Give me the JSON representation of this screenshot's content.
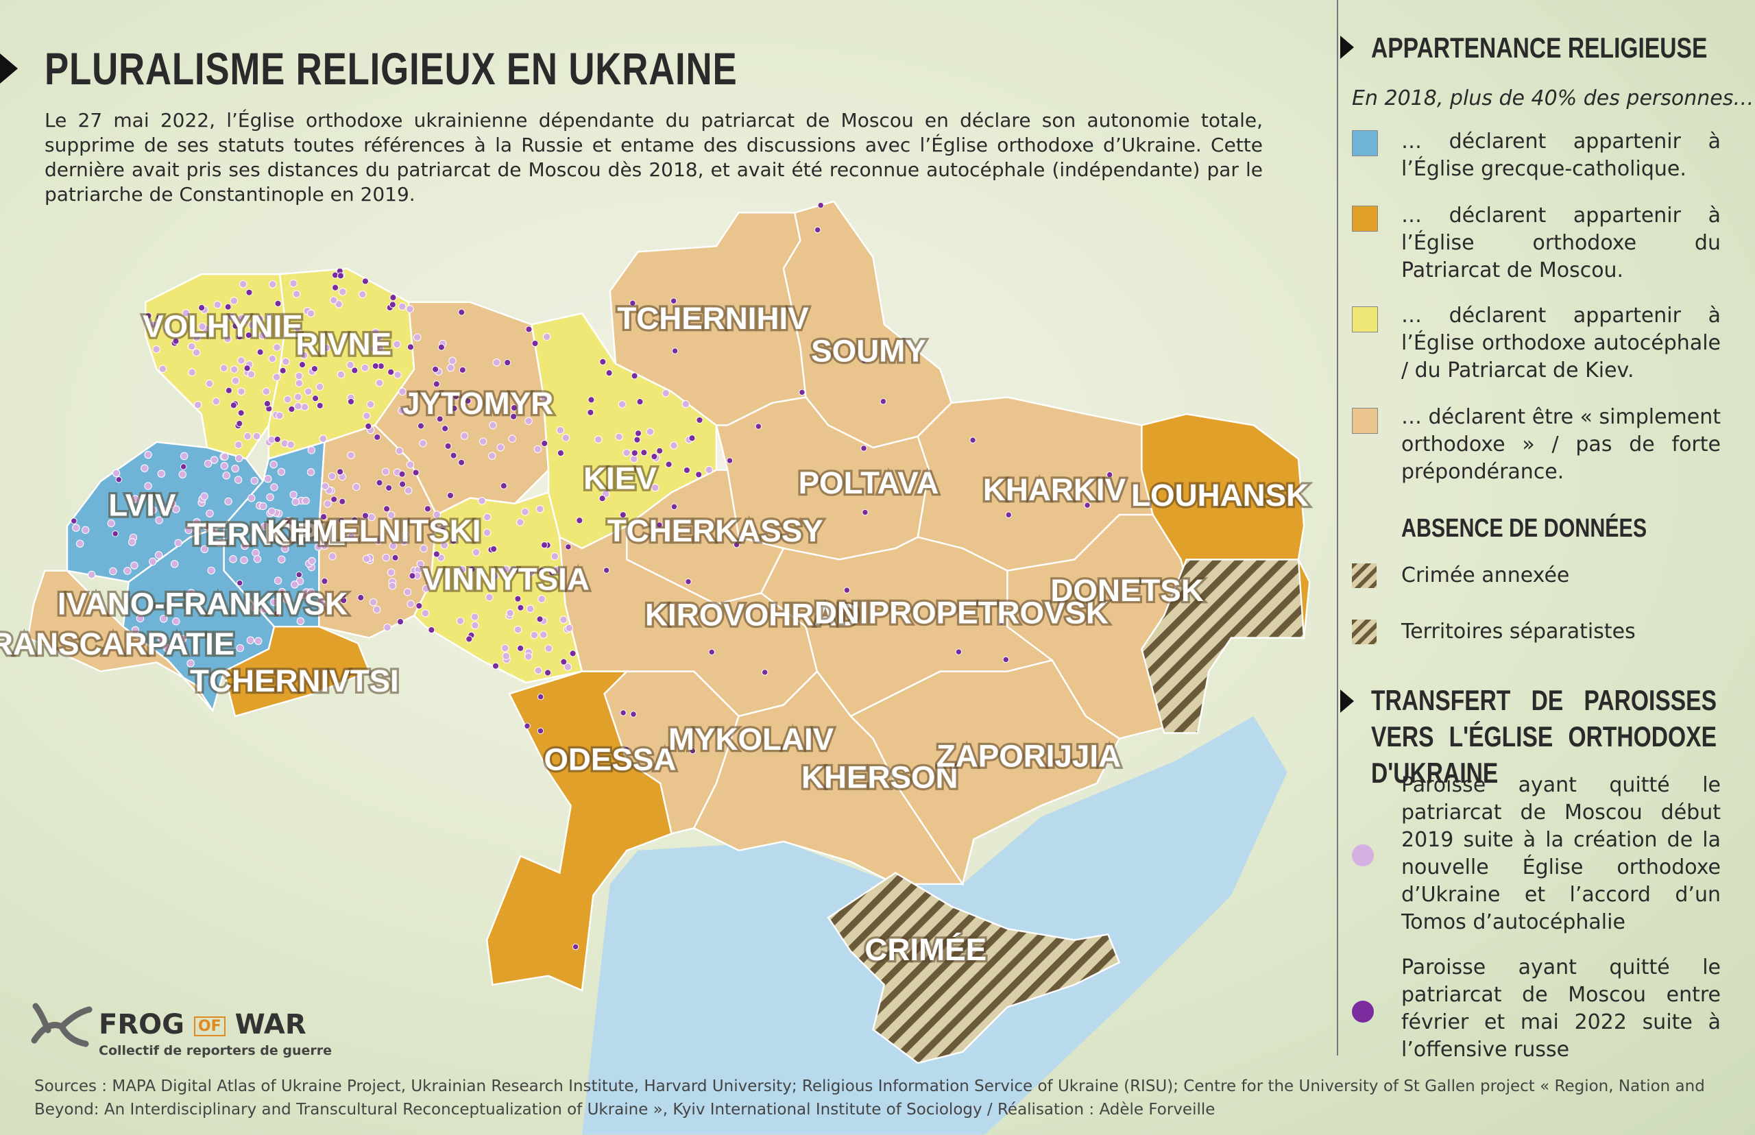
{
  "header": {
    "title": "PLURALISME RELIGIEUX EN UKRAINE",
    "intro": "Le 27 mai 2022, l’Église orthodoxe ukrainienne dépendante du patriarcat de Moscou en déclare son autonomie totale, supprime de ses statuts toutes références à la Russie et entame des discussions avec l’Église orthodoxe d’Ukraine. Cette dernière avait pris ses distances du patriarcat de Moscou dès 2018, et avait été reconnue autocéphale (indépendante) par le patriarche de Constantinople en 2019."
  },
  "map": {
    "regions": [
      "VOLHYNIE",
      "RIVNE",
      "JYTOMYR",
      "KIEV",
      "TCHERNIHIV",
      "SOUMY",
      "POLTAVA",
      "KHARKIV",
      "LOUHANSK",
      "LVIV",
      "TERNOPIL",
      "KHMELNITSKI",
      "VINNYTSIA",
      "TCHERKASSY",
      "IVANO-FRANKIVSK",
      "TRANSCARPATIE",
      "TCHERNIVTSI",
      "KIROVOHRAD",
      "DNIPROPETROVSK",
      "DONETSK",
      "ODESSA",
      "MYKOLAIV",
      "KHERSON",
      "ZAPORIJJIA",
      "CRIMÉE"
    ]
  },
  "legend": {
    "title": "APPARTENANCE RELIGIEUSE",
    "subtitle": "En 2018, plus de 40% des personnes…",
    "items": [
      "… déclarent appartenir à l’Église grecque-catholique.",
      "… déclarent appartenir à l’Église orthodoxe du Patriarcat de Moscou.",
      "… déclarent appartenir à l’Église orthodoxe autocéphale / du Patriarcat de Kiev.",
      "… déclarent être « simplement orthodoxe » / pas de forte prépondérance."
    ],
    "no_data_title": "ABSENCE DE DONNÉES",
    "no_data_items": [
      "Crimée annexée",
      "Territoires séparatistes"
    ],
    "transfer_title": "TRANSFERT DE PAROISSES VERS L'ÉGLISE ORTHODOXE D'UKRAINE",
    "transfer_items": [
      "Paroisse ayant quitté le patriarcat de Moscou début 2019 suite à la création de la nouvelle Église orthodoxe d’Ukraine et l’accord d’un Tomos d’autocéphalie",
      "Paroisse ayant quitté le patriarcat de Moscou entre février et mai 2022 suite à l’offensive russe"
    ]
  },
  "logo": {
    "part1": "FROG",
    "part2": "OF",
    "part3": "WAR",
    "tagline": "Collectif de reporters de guerre"
  },
  "sources": "Sources : MAPA Digital Atlas of Ukraine Project, Ukrainian Research Institute, Harvard University; Religious Information Service of Ukraine (RISU); Centre for the University of St Gallen project « Region, Nation and Beyond: An Interdisciplinary and Transcultural Reconceptualization of Ukraine », Kyiv International Institute of Sociology / Réalisation : Adèle Forveille"
}
